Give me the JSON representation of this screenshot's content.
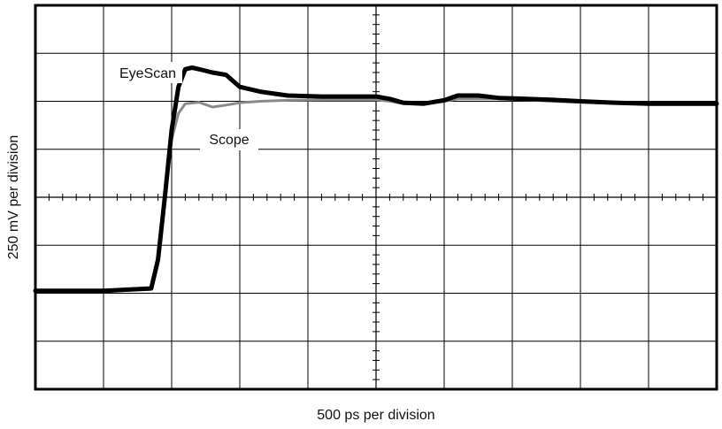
{
  "chart_data": {
    "type": "line",
    "title": "",
    "xlabel": "500 ps per division",
    "ylabel": "250 mV per division",
    "grid": true,
    "x_divisions": 10,
    "y_divisions": 8,
    "xlim": [
      0,
      10
    ],
    "ylim": [
      -4,
      4
    ],
    "series": [
      {
        "name": "EyeScan",
        "color": "#000000",
        "x": [
          0,
          1.0,
          1.7,
          1.8,
          1.9,
          2.0,
          2.1,
          2.2,
          2.3,
          2.4,
          2.6,
          2.8,
          3.0,
          3.3,
          3.7,
          4.2,
          4.6,
          5.0,
          5.2,
          5.4,
          5.7,
          6.0,
          6.2,
          6.5,
          6.8,
          7.2,
          7.6,
          8.0,
          8.5,
          9.0,
          9.5,
          10.0
        ],
        "values": [
          -1.95,
          -1.95,
          -1.9,
          -1.3,
          0.0,
          1.4,
          2.3,
          2.67,
          2.7,
          2.67,
          2.6,
          2.55,
          2.3,
          2.2,
          2.12,
          2.1,
          2.1,
          2.1,
          2.05,
          1.97,
          1.95,
          2.02,
          2.12,
          2.12,
          2.07,
          2.05,
          2.03,
          2.0,
          1.97,
          1.95,
          1.95,
          1.95
        ]
      },
      {
        "name": "Scope",
        "color": "#8a8a8a",
        "x": [
          0,
          1.0,
          1.7,
          1.8,
          1.9,
          2.0,
          2.1,
          2.2,
          2.4,
          2.6,
          2.8,
          3.0,
          3.3,
          3.7,
          4.2,
          4.6,
          5.0,
          5.2,
          5.4,
          5.7,
          6.0,
          6.2,
          6.5,
          6.8,
          7.2,
          7.6,
          8.0,
          8.5,
          9.0,
          9.5,
          10.0
        ],
        "values": [
          -1.95,
          -1.95,
          -1.9,
          -1.3,
          -0.1,
          1.2,
          1.75,
          1.95,
          1.98,
          1.88,
          1.92,
          1.97,
          2.0,
          2.02,
          2.03,
          2.03,
          2.03,
          2.0,
          1.95,
          1.95,
          2.0,
          2.05,
          2.05,
          2.05,
          2.03,
          2.0,
          1.98,
          1.96,
          1.95,
          1.95,
          1.95
        ]
      }
    ],
    "annotations": [
      {
        "text": "EyeScan",
        "series": "EyeScan"
      },
      {
        "text": "Scope",
        "series": "Scope"
      }
    ]
  }
}
